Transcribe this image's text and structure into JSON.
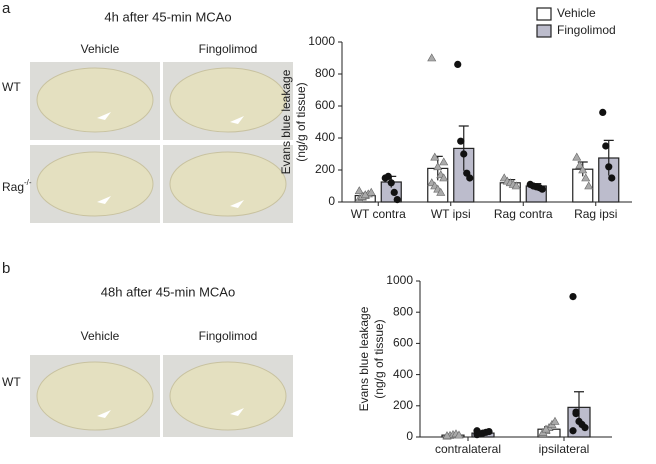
{
  "panels": [
    {
      "label": "a",
      "title": "4h after 45-min MCAo",
      "columns": [
        "Vehicle",
        "Fingolimod"
      ],
      "rows": [
        {
          "base": "WT"
        },
        {
          "base": "Rag",
          "sup": "-/-"
        }
      ]
    },
    {
      "label": "b",
      "title": "48h after 45-min MCAo",
      "columns": [
        "Vehicle",
        "Fingolimod"
      ],
      "rows": [
        {
          "base": "WT"
        }
      ]
    }
  ],
  "chart_data": [
    {
      "type": "bar",
      "ylabel": [
        "Evans blue leakage",
        "(ng/g of tissue)"
      ],
      "categories": [
        "WT contra",
        "WT ipsi",
        "Rag contra",
        "Rag ipsi"
      ],
      "ylim": [
        0,
        1000
      ],
      "yticks": [
        0,
        200,
        400,
        600,
        800,
        1000
      ],
      "legend": "top-right",
      "series": [
        {
          "name": "Vehicle",
          "color": "#ffffff",
          "marker": "triangle",
          "marker_color": "#aaaaaa",
          "values": [
            40,
            210,
            120,
            205
          ],
          "errors": [
            15,
            75,
            20,
            45
          ],
          "points": [
            [
              20,
              30,
              40,
              50,
              60,
              70,
              35,
              45
            ],
            [
              900,
              280,
              220,
              170,
              150,
              120,
              100,
              80,
              60,
              250
            ],
            [
              150,
              130,
              120,
              110,
              100
            ],
            [
              280,
              230,
              200,
              150,
              100
            ]
          ]
        },
        {
          "name": "Fingolimod",
          "color": "#bcbccc",
          "marker": "circle",
          "marker_color": "#111111",
          "values": [
            125,
            335,
            100,
            275
          ],
          "errors": [
            35,
            140,
            15,
            110
          ],
          "points": [
            [
              150,
              160,
              120,
              60,
              15
            ],
            [
              860,
              380,
              300,
              180,
              150
            ],
            [
              110,
              100,
              95,
              90,
              80
            ],
            [
              560,
              350,
              220,
              150
            ]
          ]
        }
      ]
    },
    {
      "type": "bar",
      "ylabel": [
        "Evans blue leakage",
        "(ng/g of tissue)"
      ],
      "categories": [
        "contralateral",
        "ipsilateral"
      ],
      "ylim": [
        0,
        1000
      ],
      "yticks": [
        0,
        200,
        400,
        600,
        800,
        1000
      ],
      "series": [
        {
          "color": "#ffffff",
          "marker": "triangle",
          "marker_color": "#aaaaaa",
          "values": [
            12,
            50
          ],
          "errors": [
            4,
            15
          ],
          "points": [
            [
              5,
              10,
              15,
              20,
              12,
              8
            ],
            [
              20,
              40,
              60,
              80,
              100,
              30,
              50
            ]
          ]
        },
        {
          "color": "#bcbccc",
          "marker": "circle",
          "marker_color": "#111111",
          "values": [
            25,
            190
          ],
          "errors": [
            5,
            100
          ],
          "points": [
            [
              15,
              20,
              25,
              30,
              35,
              40,
              20
            ],
            [
              900,
              150,
              100,
              80,
              60,
              40,
              160
            ]
          ]
        }
      ]
    }
  ]
}
